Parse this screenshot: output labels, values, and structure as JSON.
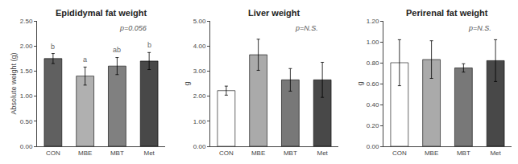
{
  "chart_data": [
    {
      "type": "bar",
      "title": "Epididymal fat weight",
      "ylabel": "Absolute weight (g)",
      "categories": [
        "CON",
        "MBE",
        "MBT",
        "Met"
      ],
      "values": [
        1.75,
        1.4,
        1.6,
        1.7
      ],
      "errors": [
        0.1,
        0.18,
        0.17,
        0.17
      ],
      "colors": [
        "#606060",
        "#b0b0b0",
        "#808080",
        "#484848"
      ],
      "ylim": [
        0,
        2.5
      ],
      "yticks": [
        {
          "value": 0,
          "label": "0.00"
        },
        {
          "value": 0.5,
          "label": "0.50"
        },
        {
          "value": 1,
          "label": "1.00"
        },
        {
          "value": 1.5,
          "label": "1.50"
        },
        {
          "value": 2,
          "label": "2.00"
        },
        {
          "value": 2.5,
          "label": "2.50"
        }
      ],
      "grid": false,
      "annotations": [
        {
          "text": "b",
          "x": "CON",
          "y": 1.88
        },
        {
          "text": "a",
          "x": "MBE",
          "y": 1.62
        },
        {
          "text": "ab",
          "x": "MBT",
          "y": 1.81
        },
        {
          "text": "b",
          "x": "Met",
          "y": 1.9
        },
        {
          "text": "p=0.056"
        }
      ]
    },
    {
      "type": "bar",
      "title": "Liver weight",
      "ylabel": "g",
      "categories": [
        "CON",
        "MBE",
        "MBT",
        "Met"
      ],
      "values": [
        2.22,
        3.65,
        2.65,
        2.65
      ],
      "errors": [
        0.18,
        0.62,
        0.45,
        0.7
      ],
      "colors": [
        "#ffffff",
        "#aaaaaa",
        "#787878",
        "#484848"
      ],
      "ylim": [
        0,
        5
      ],
      "yticks": [
        {
          "value": 0,
          "label": "0.00"
        },
        {
          "value": 1,
          "label": "1.00"
        },
        {
          "value": 2,
          "label": "2.00"
        },
        {
          "value": 3,
          "label": "3.00"
        },
        {
          "value": 4,
          "label": "4.00"
        },
        {
          "value": 5,
          "label": "5.00"
        }
      ],
      "grid": false,
      "annotations": [
        {
          "text": "p=N.S."
        }
      ]
    },
    {
      "type": "bar",
      "title": "Perirenal fat weight",
      "ylabel": "g",
      "categories": [
        "CON",
        "MBE",
        "MBT",
        "Met"
      ],
      "values": [
        0.8,
        0.83,
        0.75,
        0.82
      ],
      "errors": [
        0.22,
        0.18,
        0.04,
        0.2
      ],
      "colors": [
        "#ffffff",
        "#aaaaaa",
        "#787878",
        "#484848"
      ],
      "ylim": [
        0,
        1.2
      ],
      "yticks": [
        {
          "value": 0,
          "label": "0.00"
        },
        {
          "value": 0.2,
          "label": "0.20"
        },
        {
          "value": 0.4,
          "label": "0.40"
        },
        {
          "value": 0.6,
          "label": "0.60"
        },
        {
          "value": 0.8,
          "label": "0.80"
        },
        {
          "value": 1,
          "label": "1.00"
        },
        {
          "value": 1.2,
          "label": "1.20"
        }
      ],
      "grid": false,
      "annotations": [
        {
          "text": "p=N.S."
        }
      ]
    }
  ]
}
